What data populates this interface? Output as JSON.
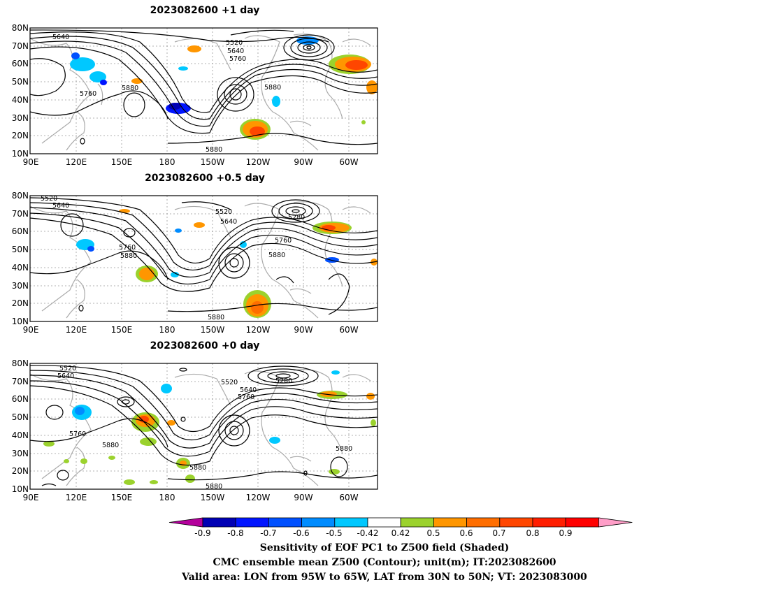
{
  "panels": [
    {
      "title": "2023082600 +1 day",
      "contour_labels": [
        "5640",
        "5520",
        "5640",
        "5760",
        "5760",
        "5880",
        "5880",
        "5880"
      ]
    },
    {
      "title": "2023082600 +0.5 day",
      "contour_labels": [
        "5520",
        "5640",
        "5520",
        "5640",
        "5280",
        "5760",
        "5760",
        "5880",
        "5880",
        "5880"
      ]
    },
    {
      "title": "2023082600 +0 day",
      "contour_labels": [
        "5520",
        "5640",
        "5520",
        "5640",
        "5760",
        "5280",
        "5760",
        "5880",
        "5880",
        "5880",
        "5880"
      ]
    }
  ],
  "lat_labels": [
    "80N",
    "70N",
    "60N",
    "50N",
    "40N",
    "30N",
    "20N",
    "10N"
  ],
  "lon_labels": [
    "90E",
    "120E",
    "150E",
    "180",
    "150W",
    "120W",
    "90W",
    "60W"
  ],
  "colorbar": {
    "ticks": [
      "-0.9",
      "-0.8",
      "-0.7",
      "-0.6",
      "-0.5",
      "-0.42",
      "0.42",
      "0.5",
      "0.6",
      "0.7",
      "0.8",
      "0.9"
    ],
    "colors": [
      "#b4009c",
      "#0000b4",
      "#0014ff",
      "#0050ff",
      "#008cff",
      "#00c8ff",
      "#ffffff",
      "#9bd22d",
      "#ff9600",
      "#ff6e00",
      "#ff4600",
      "#ff1e00",
      "#ff0000",
      "#ff9ec8"
    ]
  },
  "captions": [
    "Sensitivity of EOF PC1 to Z500 field (Shaded)",
    "CMC ensemble mean Z500 (Contour); unit(m); IT:2023082600",
    "Valid area: LON from 95W to 65W, LAT from 30N to 50N; VT: 2023083000"
  ]
}
